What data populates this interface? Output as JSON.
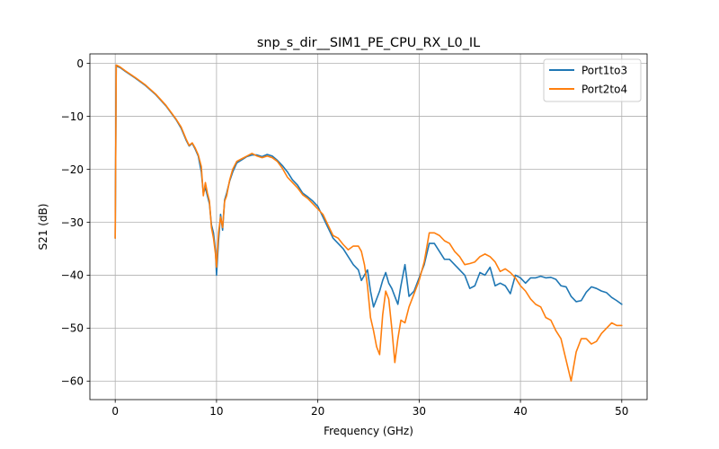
{
  "chart_data": {
    "type": "line",
    "title": "snp_s_dir__SIM1_PE_CPU_RX_L0_IL",
    "xlabel": "Frequency (GHz)",
    "ylabel": "S21 (dB)",
    "xlim": [
      -2.5,
      52.5
    ],
    "ylim": [
      -63.5,
      1.8
    ],
    "xticks": [
      0,
      10,
      20,
      30,
      40,
      50
    ],
    "yticks": [
      0,
      -10,
      -20,
      -30,
      -40,
      -50,
      -60
    ],
    "grid": true,
    "legend_position": "upper right",
    "series": [
      {
        "name": "Port1to3",
        "color": "#1f77b4",
        "x": [
          0,
          0.1,
          0.5,
          1,
          2,
          3,
          4,
          5,
          6,
          6.5,
          7,
          7.3,
          7.6,
          7.9,
          8.2,
          8.5,
          8.7,
          8.9,
          9.1,
          9.3,
          9.5,
          9.7,
          9.9,
          10,
          10.2,
          10.4,
          10.6,
          10.8,
          11,
          11.3,
          11.6,
          12,
          12.5,
          13,
          13.5,
          14,
          14.5,
          15,
          15.5,
          16,
          16.5,
          17,
          17.5,
          18,
          18.5,
          19,
          19.5,
          20,
          20.5,
          21,
          21.5,
          22,
          22.5,
          23,
          23.5,
          24,
          24.3,
          24.6,
          24.9,
          25.2,
          25.5,
          25.8,
          26.1,
          26.4,
          26.7,
          27,
          27.3,
          27.6,
          27.9,
          28.2,
          28.6,
          29,
          29.5,
          30,
          30.5,
          31,
          31.5,
          32,
          32.5,
          33,
          33.5,
          34,
          34.5,
          35,
          35.5,
          36,
          36.5,
          37,
          37.5,
          38,
          38.5,
          39,
          39.5,
          40,
          40.5,
          41,
          41.5,
          42,
          42.5,
          43,
          43.5,
          44,
          44.5,
          45,
          45.5,
          46,
          46.5,
          47,
          47.5,
          48,
          48.5,
          49,
          49.5,
          50
        ],
        "y": [
          -33,
          -0.5,
          -0.8,
          -1.5,
          -2.8,
          -4.2,
          -5.9,
          -8,
          -10.6,
          -12.2,
          -14.5,
          -15.6,
          -15.1,
          -16.2,
          -17.5,
          -20.5,
          -24.5,
          -23.5,
          -25,
          -26.5,
          -30.5,
          -32,
          -35.5,
          -40,
          -33.5,
          -28.5,
          -31.5,
          -25.8,
          -24.5,
          -22.2,
          -20.5,
          -18.8,
          -18.2,
          -17.6,
          -17.3,
          -17.3,
          -17.6,
          -17.2,
          -17.5,
          -18.3,
          -19.3,
          -20.5,
          -22,
          -23,
          -24.5,
          -25.2,
          -26,
          -27,
          -29,
          -31,
          -33,
          -34,
          -35,
          -36.5,
          -38,
          -39,
          -41,
          -40,
          -39,
          -43,
          -46,
          -44.5,
          -43,
          -41,
          -39.5,
          -41.5,
          -42.5,
          -44,
          -45.5,
          -42,
          -38,
          -44,
          -43,
          -40.5,
          -38,
          -34,
          -34,
          -35.5,
          -37,
          -37,
          -38,
          -39,
          -40,
          -42.5,
          -42,
          -39.5,
          -40,
          -38.5,
          -42,
          -41.5,
          -42,
          -43.5,
          -40,
          -40.5,
          -41.5,
          -40.5,
          -40.5,
          -40.2,
          -40.5,
          -40.4,
          -40.8,
          -42,
          -42.2,
          -44,
          -45,
          -44.8,
          -43.2,
          -42.2,
          -42.5,
          -43,
          -43.3,
          -44.2,
          -44.8,
          -45.5
        ]
      },
      {
        "name": "Port2to4",
        "color": "#ff7f0e",
        "x": [
          0,
          0.1,
          0.5,
          1,
          2,
          3,
          4,
          5,
          6,
          6.5,
          7,
          7.3,
          7.6,
          7.9,
          8.2,
          8.5,
          8.7,
          8.9,
          9.1,
          9.3,
          9.5,
          9.7,
          9.9,
          10,
          10.2,
          10.4,
          10.6,
          10.8,
          11,
          11.3,
          11.6,
          12,
          12.5,
          13,
          13.5,
          14,
          14.5,
          15,
          15.5,
          16,
          16.5,
          17,
          17.5,
          18,
          18.5,
          19,
          19.5,
          20,
          20.5,
          21,
          21.5,
          22,
          22.5,
          23,
          23.5,
          24,
          24.3,
          24.6,
          24.9,
          25.2,
          25.5,
          25.8,
          26.1,
          26.4,
          26.7,
          27,
          27.3,
          27.6,
          27.9,
          28.2,
          28.6,
          29,
          29.5,
          30,
          30.5,
          31,
          31.5,
          32,
          32.5,
          33,
          33.5,
          34,
          34.5,
          35,
          35.5,
          36,
          36.5,
          37,
          37.5,
          38,
          38.5,
          39,
          39.5,
          40,
          40.5,
          41,
          41.5,
          42,
          42.5,
          43,
          43.5,
          44,
          44.5,
          45,
          45.5,
          46,
          46.5,
          47,
          47.5,
          48,
          48.5,
          49,
          49.5,
          50
        ],
        "y": [
          -33,
          -0.3,
          -0.7,
          -1.4,
          -2.7,
          -4.1,
          -5.8,
          -7.9,
          -10.5,
          -12,
          -14.3,
          -15.5,
          -15,
          -16,
          -17.3,
          -19.5,
          -25,
          -22.5,
          -24.5,
          -26,
          -31,
          -33,
          -36,
          -38.5,
          -32,
          -29,
          -31,
          -26,
          -25,
          -22,
          -20,
          -18.5,
          -18,
          -17.5,
          -17,
          -17.5,
          -17.8,
          -17.5,
          -17.8,
          -18.5,
          -19.8,
          -21.5,
          -22.5,
          -23.5,
          -24.8,
          -25.5,
          -26.5,
          -27.5,
          -28.5,
          -30.5,
          -32.5,
          -33,
          -34.2,
          -35.2,
          -34.5,
          -34.5,
          -35.5,
          -38,
          -42,
          -48,
          -50.5,
          -53.5,
          -55,
          -47.5,
          -43,
          -44.5,
          -50,
          -56.5,
          -52,
          -48.5,
          -49,
          -46,
          -43.5,
          -41,
          -37.5,
          -32,
          -32,
          -32.5,
          -33.5,
          -34,
          -35.5,
          -36.5,
          -38,
          -37.8,
          -37.5,
          -36.5,
          -36,
          -36.5,
          -37.5,
          -39.3,
          -38.8,
          -39.5,
          -40.5,
          -42,
          -43,
          -44.5,
          -45.5,
          -46,
          -48,
          -48.5,
          -50.5,
          -52,
          -56,
          -60,
          -54.5,
          -52,
          -52,
          -53,
          -52.5,
          -51,
          -50,
          -49,
          -49.5,
          -49.5
        ]
      }
    ]
  }
}
